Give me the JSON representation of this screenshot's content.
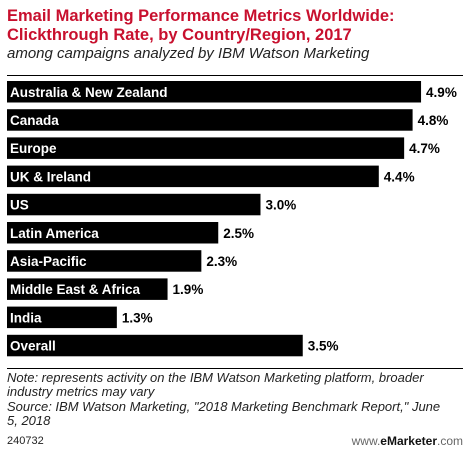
{
  "chart_data": {
    "type": "bar",
    "orientation": "horizontal",
    "title_line1": "Email Marketing Performance Metrics Worldwide:",
    "title_line2": "Clickthrough Rate, by Country/Region, 2017",
    "subtitle": "among campaigns analyzed by IBM Watson Marketing",
    "categories": [
      "Australia & New Zealand",
      "Canada",
      "Europe",
      "UK & Ireland",
      "US",
      "Latin America",
      "Asia-Pacific",
      "Middle East & Africa",
      "India",
      "Overall"
    ],
    "values": [
      4.9,
      4.8,
      4.7,
      4.4,
      3.0,
      2.5,
      2.3,
      1.9,
      1.3,
      3.5
    ],
    "value_labels": [
      "4.9%",
      "4.8%",
      "4.7%",
      "4.4%",
      "3.0%",
      "2.5%",
      "2.3%",
      "1.9%",
      "1.3%",
      "3.5%"
    ],
    "unit": "%",
    "bar_color": "#000000",
    "title_color": "#c8102e"
  },
  "note": {
    "line1": "Note: represents activity on the IBM Watson Marketing platform, broader",
    "line2": "industry metrics may vary",
    "line3": "Source: IBM Watson Marketing, \"2018 Marketing Benchmark Report,\" June",
    "line4": "5, 2018"
  },
  "footer": {
    "id": "240732",
    "brand_prefix": "www.",
    "brand_name": "eMarketer",
    "brand_suffix": ".com"
  }
}
